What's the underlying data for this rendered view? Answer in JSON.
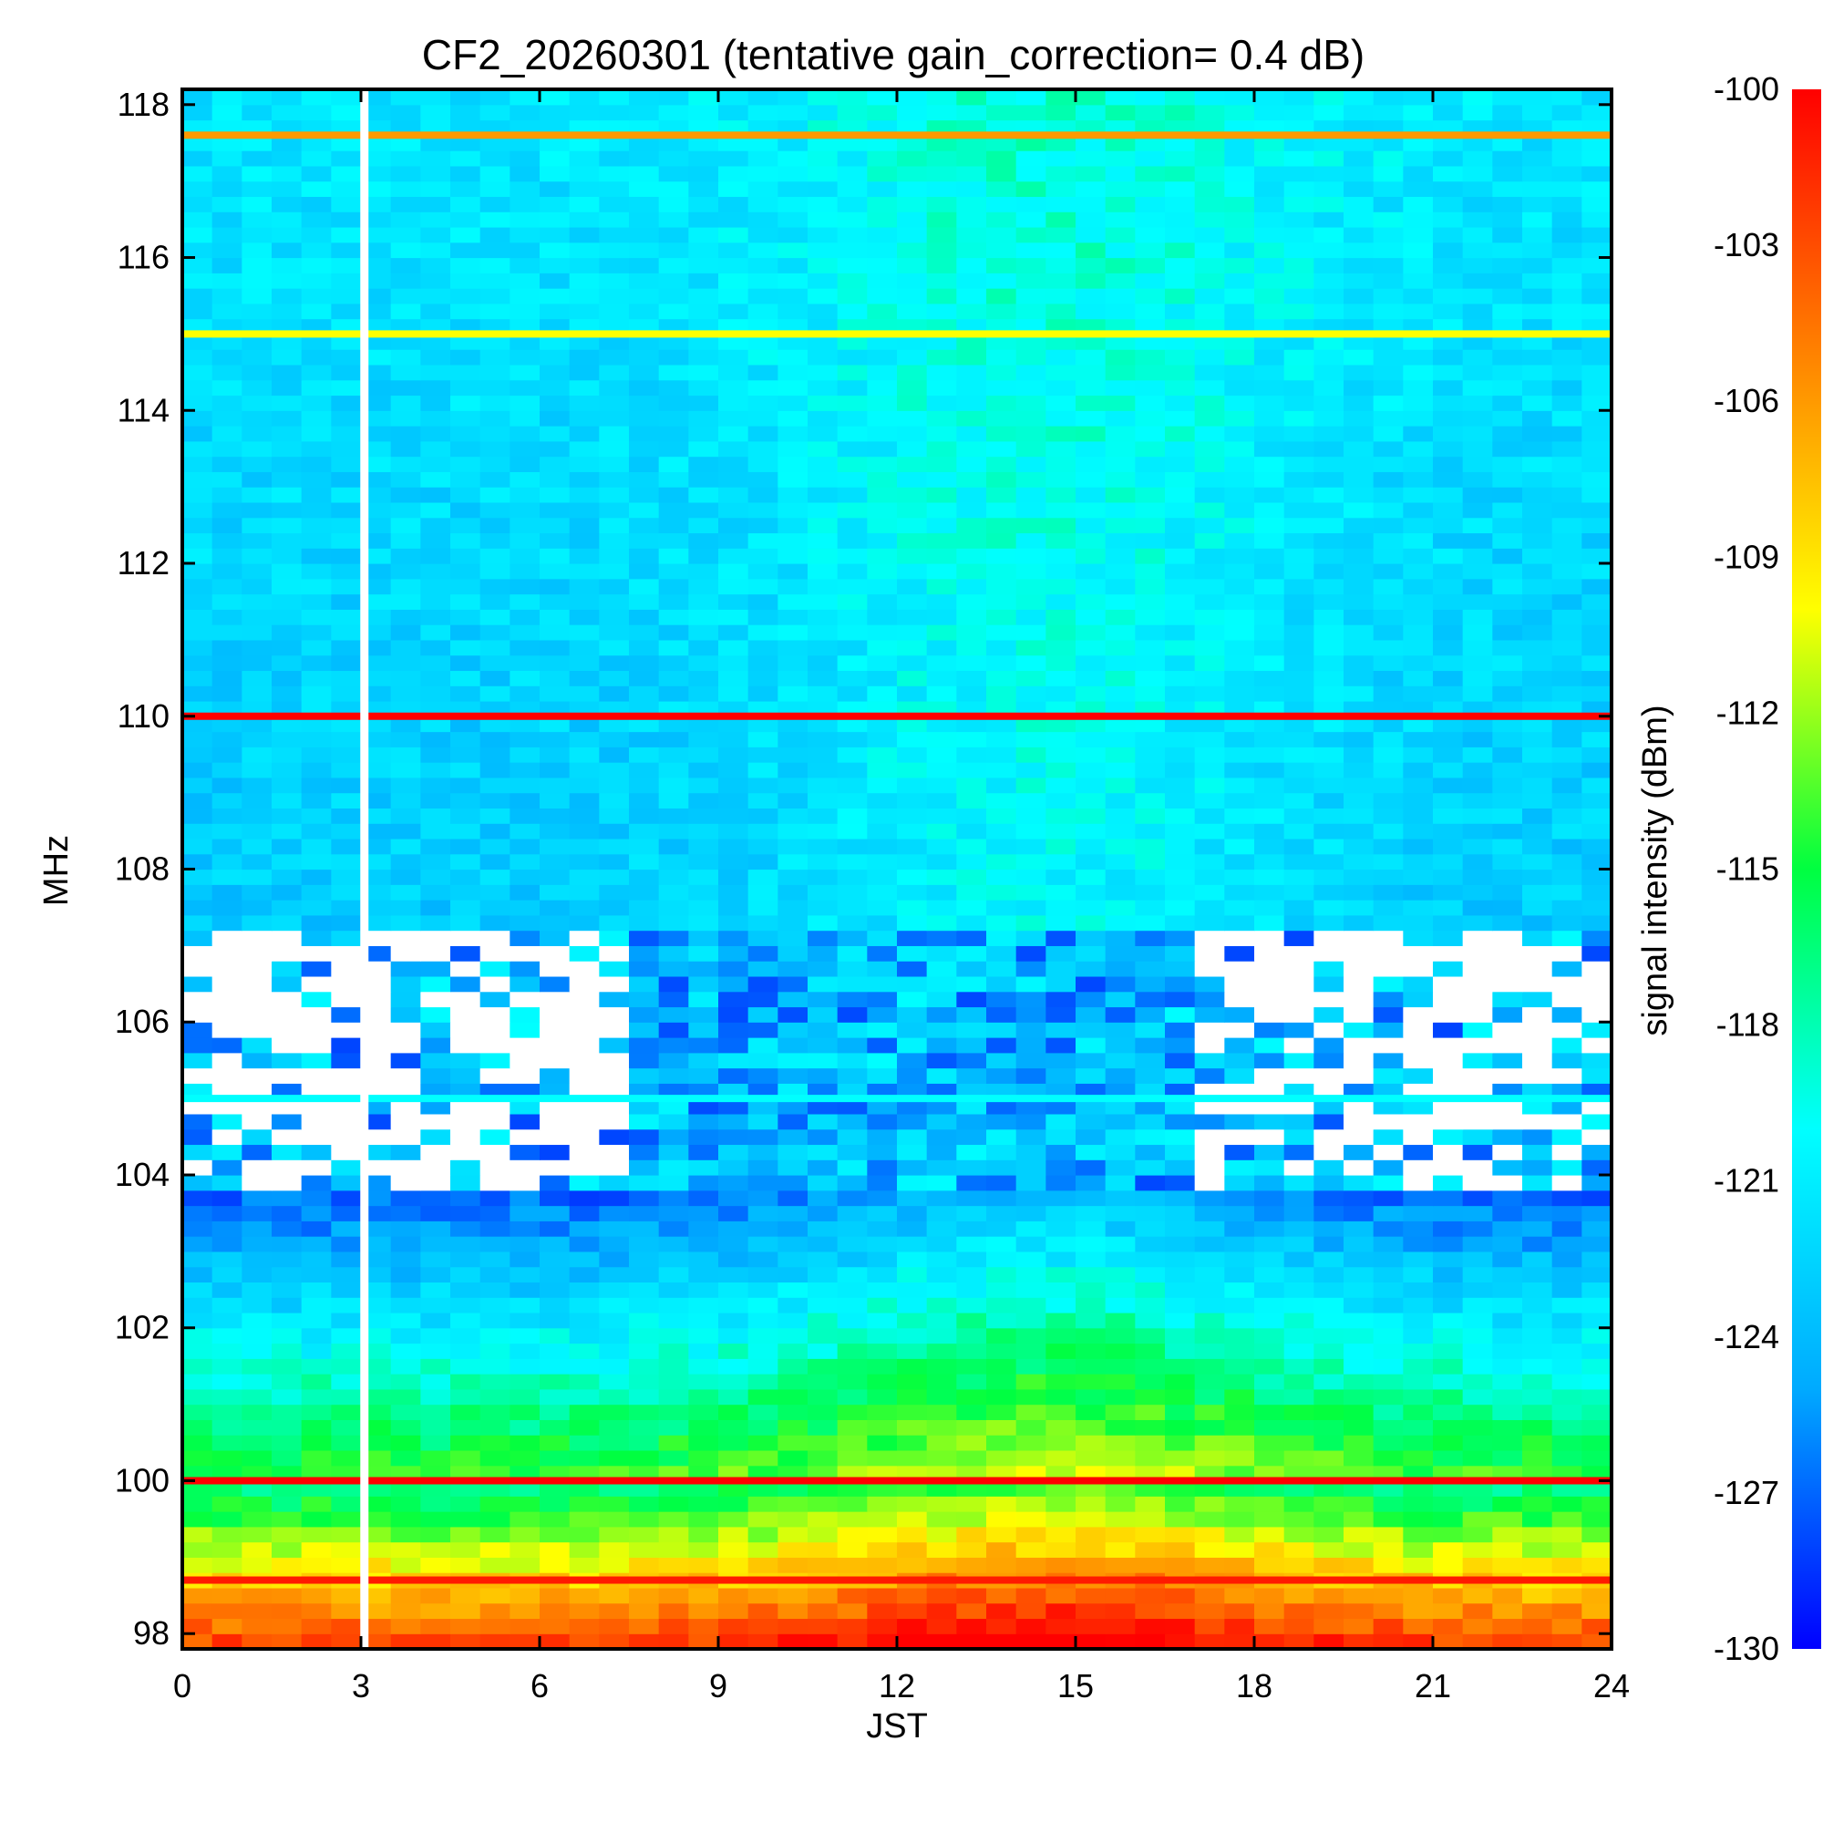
{
  "chart_data": {
    "type": "heatmap",
    "title": "CF2_20260301 (tentative gain_correction=  0.4 dB)",
    "xlabel": "JST",
    "ylabel": "MHz",
    "xlim": [
      0,
      24
    ],
    "ylim": [
      97.8,
      118.2
    ],
    "x_ticks": [
      0,
      3,
      6,
      9,
      12,
      15,
      18,
      21,
      24
    ],
    "x_tick_labels": [
      "0",
      "3",
      "6",
      "9",
      "12",
      "15",
      "18",
      "21",
      "24"
    ],
    "y_ticks": [
      98,
      100,
      102,
      104,
      106,
      108,
      110,
      112,
      114,
      116,
      118
    ],
    "y_tick_labels": [
      "98",
      "100",
      "102",
      "104",
      "106",
      "108",
      "110",
      "112",
      "114",
      "116",
      "118"
    ],
    "colorbar": {
      "label": "signal intensity (dBm)",
      "range": [
        -130,
        -100
      ],
      "ticks": [
        -100,
        -103,
        -106,
        -109,
        -112,
        -115,
        -118,
        -121,
        -124,
        -127,
        -130
      ],
      "tick_labels": [
        "-100",
        "-103",
        "-106",
        "-109",
        "-112",
        "-115",
        "-118",
        "-121",
        "-124",
        "-127",
        "-130"
      ],
      "colormap": [
        "#0000ff",
        "#00aaff",
        "#00ffff",
        "#00ff40",
        "#ffff00",
        "#ff8000",
        "#ff0000"
      ]
    },
    "data_gap": {
      "jst": 3.05
    },
    "strong_lines": [
      {
        "mhz": 117.6,
        "dbm": -106
      },
      {
        "mhz": 115.0,
        "dbm": -110
      },
      {
        "mhz": 110.0,
        "dbm": -100
      },
      {
        "mhz": 105.0,
        "dbm": -120
      },
      {
        "mhz": 100.0,
        "dbm": -100
      },
      {
        "mhz": 98.7,
        "dbm": -101
      }
    ]
  }
}
